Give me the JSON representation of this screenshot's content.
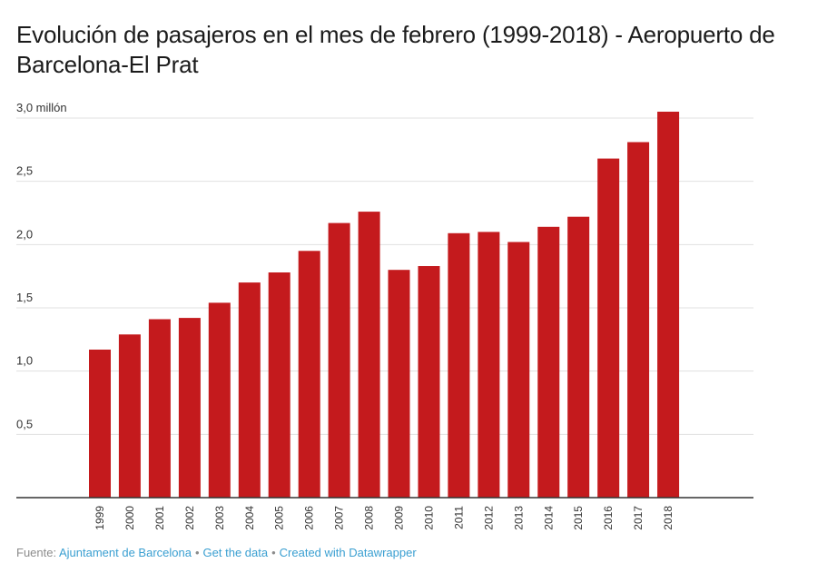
{
  "chart_data": {
    "type": "bar",
    "title": "Evolución de pasajeros en el mes de febrero (1999-2018) - Aeropuerto de Barcelona-El Prat",
    "xlabel": "",
    "ylabel": "",
    "ylim": [
      0,
      3
    ],
    "y_ticks": [
      {
        "value": 0.5,
        "label": "0,5"
      },
      {
        "value": 1.0,
        "label": "1,0"
      },
      {
        "value": 1.5,
        "label": "1,5"
      },
      {
        "value": 2.0,
        "label": "2,0"
      },
      {
        "value": 2.5,
        "label": "2,5"
      },
      {
        "value": 3.0,
        "label": "3,0 millón"
      }
    ],
    "grid": true,
    "categories": [
      "1999",
      "2000",
      "2001",
      "2002",
      "2003",
      "2004",
      "2005",
      "2006",
      "2007",
      "2008",
      "2009",
      "2010",
      "2011",
      "2012",
      "2013",
      "2014",
      "2015",
      "2016",
      "2017",
      "2018"
    ],
    "values": [
      1.17,
      1.29,
      1.41,
      1.42,
      1.54,
      1.7,
      1.78,
      1.95,
      2.17,
      2.26,
      1.8,
      1.83,
      2.09,
      2.1,
      2.02,
      2.14,
      2.22,
      2.68,
      2.81,
      3.05
    ],
    "colors": {
      "bar": "#c41a1d",
      "grid": "#e1e1e1",
      "axis": "#333333",
      "tick_text": "#333333"
    }
  },
  "footer": {
    "prefix": "Fuente: ",
    "source": "Ajuntament de Barcelona",
    "separator": "•",
    "get_data": "Get the data",
    "created_with": "Created with Datawrapper"
  }
}
